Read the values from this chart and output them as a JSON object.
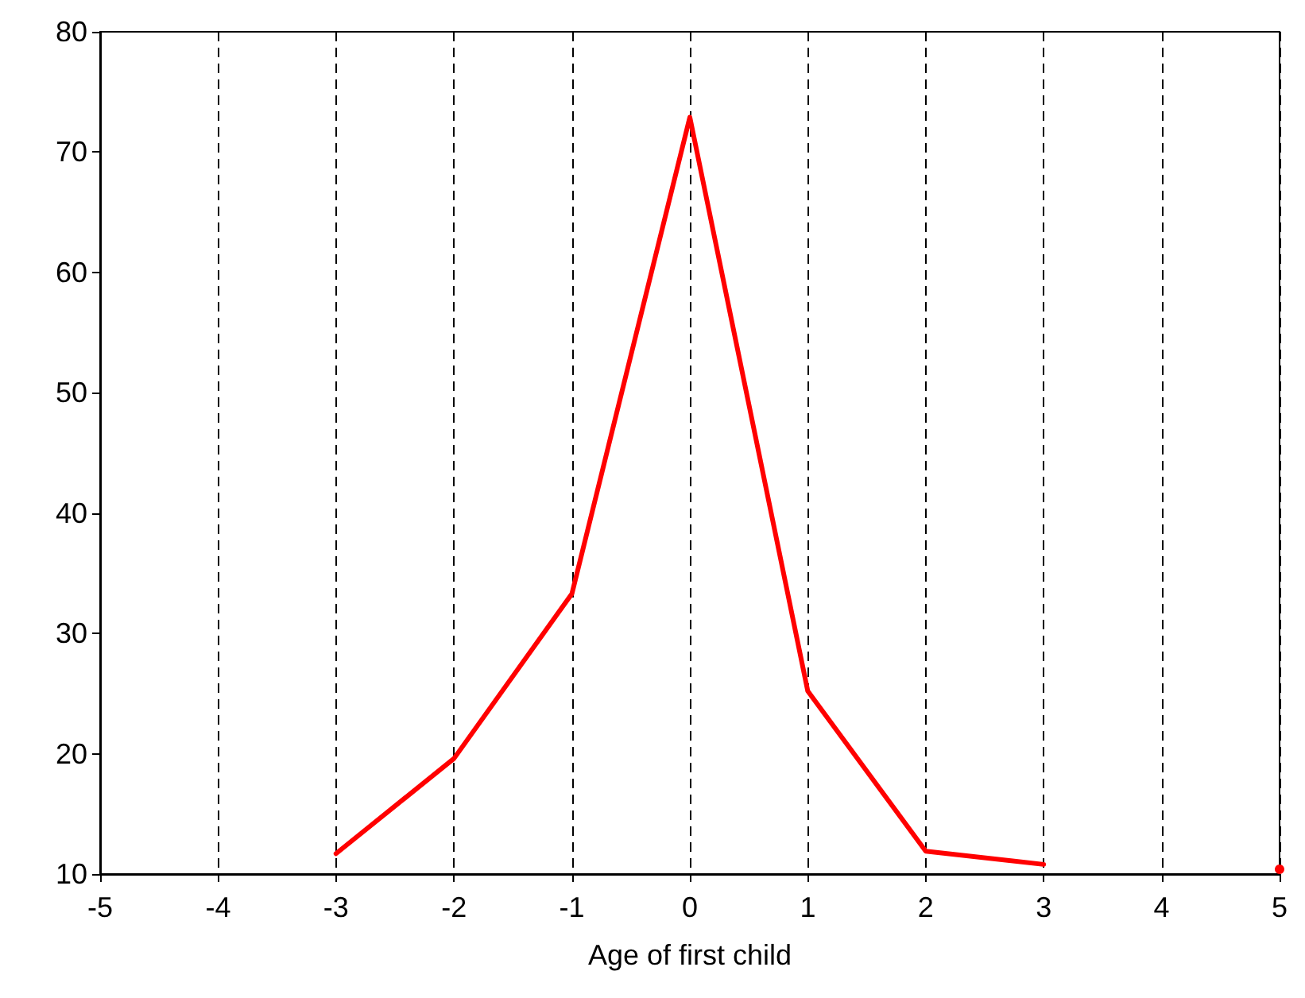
{
  "chart_data": {
    "type": "line",
    "xlabel": "Age of first child",
    "x": [
      -3,
      -2,
      -1,
      0,
      1,
      2,
      3,
      4,
      5
    ],
    "series": [
      {
        "color": "#ff0000",
        "values": [
          11.7,
          19.6,
          33.3,
          72.9,
          25.2,
          11.9,
          10.8,
          null,
          10.4
        ]
      }
    ],
    "xlim": [
      -5,
      5
    ],
    "xticks": [
      -5,
      -4,
      -3,
      -2,
      -1,
      0,
      1,
      2,
      3,
      4,
      5
    ],
    "ylim": [
      10,
      80
    ],
    "yticks": [
      10,
      20,
      30,
      40,
      50,
      60,
      70,
      80
    ],
    "grid": "x",
    "marker": "none",
    "line_style": "solid"
  }
}
